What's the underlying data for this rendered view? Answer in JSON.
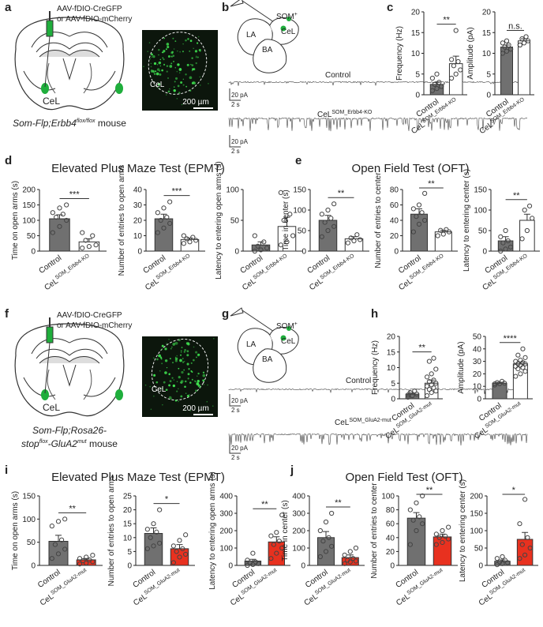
{
  "chart_data": [
    {
      "type": "bar",
      "ylabel": "Frequency (Hz)",
      "categories": [
        "Control",
        {
          "text": "CeL",
          "sup": "SOM_Erbb4-KO"
        }
      ],
      "values": [
        2.5,
        7.5
      ],
      "errors": [
        0.5,
        1.8
      ],
      "points": [
        [
          1,
          1.5,
          2,
          2.5,
          3,
          4,
          5,
          2
        ],
        [
          4,
          5,
          6,
          7,
          8,
          8.5,
          15.5
        ]
      ],
      "colors": [
        "#707070",
        "#ffffff"
      ],
      "ylim": [
        0,
        20
      ],
      "yticks": [
        0,
        5,
        10,
        15,
        20
      ],
      "significance": "**"
    },
    {
      "type": "bar",
      "ylabel": "Amplitude (pA)",
      "categories": [
        "Control",
        {
          "text": "CeL",
          "sup": "SOM_Erbb4-KO"
        }
      ],
      "values": [
        11.5,
        13
      ],
      "errors": [
        0.5,
        0.5
      ],
      "points": [
        [
          10,
          10.5,
          11,
          11.5,
          12,
          12.5,
          13,
          11
        ],
        [
          12,
          12.5,
          13,
          13.5,
          14,
          12
        ]
      ],
      "colors": [
        "#707070",
        "#ffffff"
      ],
      "ylim": [
        0,
        20
      ],
      "yticks": [
        0,
        5,
        10,
        15,
        20
      ],
      "significance": "n.s."
    },
    {
      "type": "bar",
      "ylabel": "Time on open arms (s)",
      "categories": [
        "Control",
        {
          "text": "CeL",
          "sup": "SOM_Erbb4-KO"
        }
      ],
      "values": [
        105,
        30
      ],
      "errors": [
        13,
        10
      ],
      "points": [
        [
          60,
          80,
          100,
          110,
          120,
          125,
          140,
          150
        ],
        [
          10,
          15,
          20,
          35,
          50,
          60
        ]
      ],
      "colors": [
        "#707070",
        "#ffffff"
      ],
      "ylim": [
        0,
        200
      ],
      "yticks": [
        0,
        50,
        100,
        150,
        200
      ],
      "significance": "***"
    },
    {
      "type": "bar",
      "ylabel": "Number of entries to open arms",
      "categories": [
        "Control",
        {
          "text": "CeL",
          "sup": "SOM_Erbb4-KO"
        }
      ],
      "values": [
        21,
        7.5
      ],
      "errors": [
        3,
        1
      ],
      "points": [
        [
          12,
          15,
          18,
          20,
          22,
          25,
          28,
          32
        ],
        [
          5,
          6,
          7,
          8,
          9,
          10
        ]
      ],
      "colors": [
        "#707070",
        "#ffffff"
      ],
      "ylim": [
        0,
        40
      ],
      "yticks": [
        0,
        10,
        20,
        30,
        40
      ],
      "significance": "***"
    },
    {
      "type": "bar",
      "ylabel": "Latency to entering open arms (s)",
      "categories": [
        "Control",
        {
          "text": "CeL",
          "sup": "SOM_Erbb4-KO"
        }
      ],
      "values": [
        10,
        40
      ],
      "errors": [
        5,
        15
      ],
      "points": [
        [
          0,
          2,
          5,
          8,
          15,
          25
        ],
        [
          10,
          15,
          25,
          50,
          60,
          95
        ]
      ],
      "colors": [
        "#707070",
        "#ffffff"
      ],
      "ylim": [
        0,
        100
      ],
      "yticks": [
        0,
        50,
        100
      ]
    },
    {
      "type": "bar",
      "ylabel": "Time in center (s)",
      "categories": [
        "Control",
        {
          "text": "CeL",
          "sup": "SOM_Erbb4-KO"
        }
      ],
      "values": [
        75,
        30
      ],
      "errors": [
        12,
        5
      ],
      "points": [
        [
          35,
          50,
          60,
          70,
          80,
          90,
          100,
          115
        ],
        [
          20,
          25,
          28,
          32,
          40
        ]
      ],
      "colors": [
        "#707070",
        "#ffffff"
      ],
      "ylim": [
        0,
        150
      ],
      "yticks": [
        0,
        50,
        100,
        150
      ],
      "significance": "**"
    },
    {
      "type": "bar",
      "ylabel": "Number of entries to center",
      "categories": [
        "Control",
        {
          "text": "CeL",
          "sup": "SOM_Erbb4-KO"
        }
      ],
      "values": [
        48,
        25
      ],
      "errors": [
        7,
        2
      ],
      "points": [
        [
          25,
          35,
          40,
          45,
          50,
          55,
          60,
          75
        ],
        [
          20,
          22,
          25,
          27,
          28
        ]
      ],
      "colors": [
        "#707070",
        "#ffffff"
      ],
      "ylim": [
        0,
        80
      ],
      "yticks": [
        0,
        20,
        40,
        60,
        80
      ],
      "significance": "**"
    },
    {
      "type": "bar",
      "ylabel": "Latency to entering center (s)",
      "categories": [
        "Control",
        {
          "text": "CeL",
          "sup": "SOM_Erbb4-KO"
        }
      ],
      "values": [
        25,
        75
      ],
      "errors": [
        10,
        15
      ],
      "points": [
        [
          0,
          5,
          10,
          20,
          25,
          35,
          50
        ],
        [
          30,
          50,
          80,
          100,
          110
        ]
      ],
      "colors": [
        "#707070",
        "#ffffff"
      ],
      "ylim": [
        0,
        150
      ],
      "yticks": [
        0,
        50,
        100,
        150
      ],
      "significance": "**"
    },
    {
      "type": "bar",
      "ylabel": "Frequency (Hz)",
      "categories": [
        "Control",
        {
          "text": "CeL",
          "sup": "SOM_GluA2-mut"
        }
      ],
      "values": [
        1.5,
        5
      ],
      "errors": [
        0.3,
        1
      ],
      "points": [
        [
          0.5,
          1,
          1.5,
          2,
          2.5,
          1.2
        ],
        [
          1,
          2,
          2.5,
          3,
          3.5,
          4,
          4.5,
          5,
          5.5,
          6,
          7,
          8,
          9.5,
          12,
          13
        ]
      ],
      "colors": [
        "#707070",
        "#ffffff"
      ],
      "ylim": [
        0,
        20
      ],
      "yticks": [
        0,
        5,
        10,
        15,
        20
      ],
      "significance": "**"
    },
    {
      "type": "bar",
      "ylabel": "Amplitude (pA)",
      "categories": [
        "Control",
        {
          "text": "CeL",
          "sup": "SOM_GluA2-mut"
        }
      ],
      "values": [
        12.5,
        28
      ],
      "errors": [
        0.7,
        1.5
      ],
      "points": [
        [
          11,
          12,
          12.5,
          13,
          14,
          12
        ],
        [
          18,
          20,
          22,
          24,
          25,
          26,
          27,
          28,
          28,
          29,
          30,
          31,
          33,
          35,
          40
        ]
      ],
      "colors": [
        "#707070",
        "#ffffff"
      ],
      "ylim": [
        0,
        50
      ],
      "yticks": [
        0,
        10,
        20,
        30,
        40,
        50
      ],
      "significance": "****"
    },
    {
      "type": "bar",
      "ylabel": "Time on open arms (s)",
      "categories": [
        "Control",
        {
          "text": "CeL",
          "sup": "SOM_GluA2-mut"
        }
      ],
      "values": [
        52,
        12
      ],
      "errors": [
        13,
        3
      ],
      "points": [
        [
          15,
          25,
          35,
          45,
          55,
          85,
          95,
          100
        ],
        [
          3,
          5,
          8,
          10,
          12,
          15,
          18,
          22
        ]
      ],
      "colors": [
        "#707070",
        "#e8311f"
      ],
      "ylim": [
        0,
        150
      ],
      "yticks": [
        0,
        50,
        100,
        150
      ],
      "significance": "**"
    },
    {
      "type": "bar",
      "ylabel": "Number of entries to open arms",
      "categories": [
        "Control",
        {
          "text": "CeL",
          "sup": "SOM_GluA2-mut"
        }
      ],
      "values": [
        11.5,
        6
      ],
      "errors": [
        2,
        1.5
      ],
      "points": [
        [
          6,
          7,
          8,
          10,
          12,
          13,
          15,
          20
        ],
        [
          1,
          3,
          4,
          5,
          6,
          7,
          9,
          11
        ]
      ],
      "colors": [
        "#707070",
        "#e8311f"
      ],
      "ylim": [
        0,
        25
      ],
      "yticks": [
        0,
        5,
        10,
        15,
        20,
        25
      ],
      "significance": "*"
    },
    {
      "type": "bar",
      "ylabel": "Latency to entering open arms (s)",
      "categories": [
        "Control",
        {
          "text": "CeL",
          "sup": "SOM_GluA2-mut"
        }
      ],
      "values": [
        25,
        135
      ],
      "errors": [
        10,
        30
      ],
      "points": [
        [
          0,
          5,
          10,
          15,
          20,
          30,
          70
        ],
        [
          40,
          70,
          100,
          120,
          140,
          170,
          190,
          290
        ]
      ],
      "colors": [
        "#707070",
        "#e8311f"
      ],
      "ylim": [
        0,
        400
      ],
      "yticks": [
        0,
        100,
        200,
        300,
        400
      ],
      "significance": "**"
    },
    {
      "type": "bar",
      "ylabel": "Time in center (s)",
      "categories": [
        "Control",
        {
          "text": "CeL",
          "sup": "SOM_GluA2-mut"
        }
      ],
      "values": [
        160,
        45
      ],
      "errors": [
        35,
        15
      ],
      "points": [
        [
          50,
          80,
          110,
          140,
          160,
          200,
          250,
          300
        ],
        [
          10,
          20,
          25,
          30,
          40,
          60,
          80,
          100
        ]
      ],
      "colors": [
        "#707070",
        "#e8311f"
      ],
      "ylim": [
        0,
        400
      ],
      "yticks": [
        0,
        100,
        200,
        300,
        400
      ],
      "significance": "**"
    },
    {
      "type": "bar",
      "ylabel": "Number of entries to center",
      "categories": [
        "Control",
        {
          "text": "CeL",
          "sup": "SOM_GluA2-mut"
        }
      ],
      "values": [
        68,
        41
      ],
      "errors": [
        8,
        4
      ],
      "points": [
        [
          30,
          50,
          60,
          65,
          70,
          80,
          90,
          100
        ],
        [
          30,
          33,
          38,
          40,
          42,
          45,
          50,
          55
        ]
      ],
      "colors": [
        "#707070",
        "#e8311f"
      ],
      "ylim": [
        0,
        100
      ],
      "yticks": [
        0,
        20,
        40,
        60,
        80,
        100
      ],
      "significance": "**"
    },
    {
      "type": "bar",
      "ylabel": "Latency to entering center (s)",
      "categories": [
        "Control",
        {
          "text": "CeL",
          "sup": "SOM_GluA2-mut"
        }
      ],
      "values": [
        12,
        75
      ],
      "errors": [
        4,
        20
      ],
      "points": [
        [
          2,
          5,
          8,
          10,
          15,
          20,
          25
        ],
        [
          20,
          30,
          50,
          60,
          80,
          120,
          190
        ]
      ],
      "colors": [
        "#707070",
        "#e8311f"
      ],
      "ylim": [
        0,
        200
      ],
      "yticks": [
        0,
        50,
        100,
        150,
        200
      ],
      "significance": "*"
    }
  ],
  "figure": {
    "panel_labels": [
      "a",
      "b",
      "c",
      "d",
      "e",
      "f",
      "g",
      "h",
      "i",
      "j"
    ],
    "a": {
      "virus_1": "AAV-fDIO-CreGFP",
      "virus_2": "or AAV-fDIO-mCherry",
      "region": "CeL",
      "image_region": "CeL",
      "scale": "200 µm",
      "genotype": "Som-Flp;Erbb4",
      "genotype_sup": "flox/flox",
      "genotype_tail": " mouse"
    },
    "b": {
      "neuron": "SOM",
      "neuron_sup": "+",
      "la": "LA",
      "cel": "CeL",
      "ba": "BA",
      "control": "Control",
      "mutant": "CeL",
      "mutant_sup": "SOM_Erbb4-KO",
      "scale_y": "20 pA",
      "scale_x": "2 s"
    },
    "d": {
      "title": "Elevated Plus Maze Test (EPMT)"
    },
    "e": {
      "title": "Open Field Test (OFT)"
    },
    "f": {
      "virus_1": "AAV-fDIO-CreGFP",
      "virus_2": "or AAV-fDIO-mCherry",
      "region": "CeL",
      "image_region": "CeL",
      "scale": "200 µm",
      "genotype_1": "Som-Flp;Rosa26-",
      "genotype_2": "stop",
      "genotype_2_sup": "flox",
      "genotype_3": "-GluA2",
      "genotype_3_sup": "mut",
      "genotype_tail": " mouse"
    },
    "g": {
      "neuron": "SOM",
      "neuron_sup": "+",
      "la": "LA",
      "cel": "CeL",
      "ba": "BA",
      "control": "Control",
      "mutant": "CeL",
      "mutant_sup": "SOM_GluA2-mut",
      "scale_y": "20 pA",
      "scale_x": "2 s"
    },
    "i": {
      "title": "Elevated Plus Maze Test (EPMT)"
    },
    "j": {
      "title": "Open Field Test (OFT)"
    }
  }
}
